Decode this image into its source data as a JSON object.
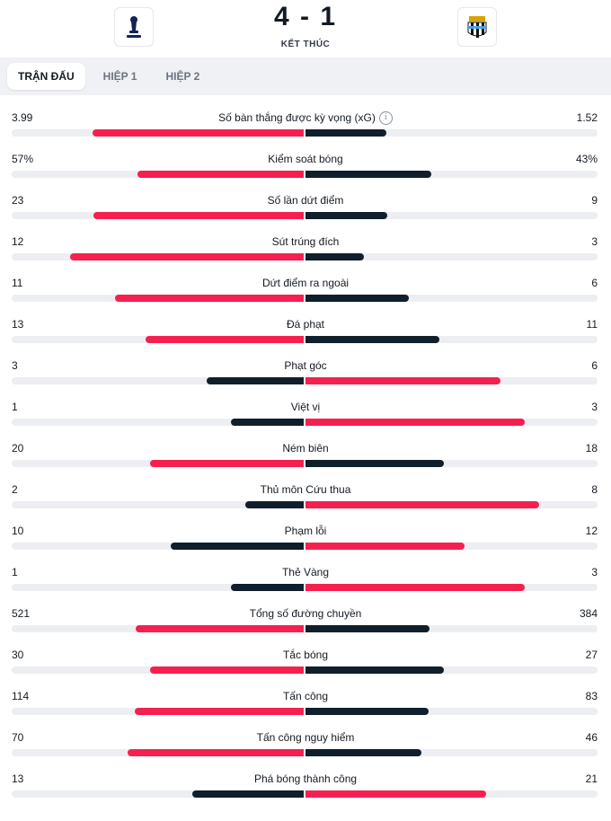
{
  "match": {
    "score": "4 - 1",
    "status": "KẾT THÚC",
    "home_crest": "tottenham-crest",
    "away_crest": "newcastle-crest"
  },
  "tabs": [
    {
      "label": "Trận đấu",
      "active": true
    },
    {
      "label": "Hiệp 1",
      "active": false
    },
    {
      "label": "Hiệp 2",
      "active": false
    }
  ],
  "colors": {
    "highlight": "#f5204f",
    "dark": "#0f1f2b",
    "track": "#eceef1"
  },
  "stats": [
    {
      "name": "Số bàn thắng được kỳ vọng (xG)",
      "home": "3.99",
      "away": "1.52",
      "home_share": 0.724,
      "away_share": 0.276,
      "info": true
    },
    {
      "name": "Kiểm soát bóng",
      "home": "57%",
      "away": "43%",
      "home_share": 0.57,
      "away_share": 0.43
    },
    {
      "name": "Số lần dứt điểm",
      "home": "23",
      "away": "9",
      "home_share": 0.719,
      "away_share": 0.281
    },
    {
      "name": "Sút trúng đích",
      "home": "12",
      "away": "3",
      "home_share": 0.8,
      "away_share": 0.2
    },
    {
      "name": "Dứt điểm ra ngoài",
      "home": "11",
      "away": "6",
      "home_share": 0.647,
      "away_share": 0.353
    },
    {
      "name": "Đá phạt",
      "home": "13",
      "away": "11",
      "home_share": 0.542,
      "away_share": 0.458
    },
    {
      "name": "Phạt góc",
      "home": "3",
      "away": "6",
      "home_share": 0.333,
      "away_share": 0.667
    },
    {
      "name": "Việt vị",
      "home": "1",
      "away": "3",
      "home_share": 0.25,
      "away_share": 0.75
    },
    {
      "name": "Ném biên",
      "home": "20",
      "away": "18",
      "home_share": 0.526,
      "away_share": 0.474
    },
    {
      "name": "Thủ môn Cứu thua",
      "home": "2",
      "away": "8",
      "home_share": 0.2,
      "away_share": 0.8
    },
    {
      "name": "Phạm lỗi",
      "home": "10",
      "away": "12",
      "home_share": 0.455,
      "away_share": 0.545
    },
    {
      "name": "Thẻ Vàng",
      "home": "1",
      "away": "3",
      "home_share": 0.25,
      "away_share": 0.75
    },
    {
      "name": "Tổng số đường chuyền",
      "home": "521",
      "away": "384",
      "home_share": 0.576,
      "away_share": 0.424
    },
    {
      "name": "Tắc bóng",
      "home": "30",
      "away": "27",
      "home_share": 0.526,
      "away_share": 0.474
    },
    {
      "name": "Tấn công",
      "home": "114",
      "away": "83",
      "home_share": 0.579,
      "away_share": 0.421
    },
    {
      "name": "Tấn công nguy hiểm",
      "home": "70",
      "away": "46",
      "home_share": 0.603,
      "away_share": 0.397
    },
    {
      "name": "Phá bóng thành công",
      "home": "13",
      "away": "21",
      "home_share": 0.382,
      "away_share": 0.618
    }
  ]
}
